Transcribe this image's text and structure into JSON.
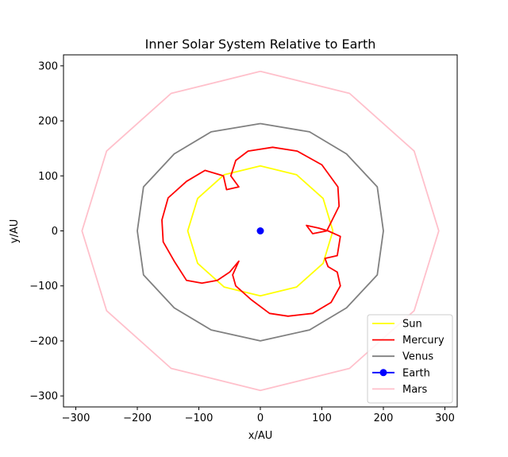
{
  "chart_data": {
    "type": "line",
    "title": "Inner Solar System Relative to Earth",
    "xlabel": "x/AU",
    "ylabel": "y/AU",
    "xlim": [
      -320,
      320
    ],
    "ylim": [
      -320,
      320
    ],
    "xticks": [
      -300,
      -200,
      -100,
      0,
      100,
      200,
      300
    ],
    "yticks": [
      -300,
      -200,
      -100,
      0,
      100,
      200,
      300
    ],
    "xticklabels": [
      "−300",
      "−200",
      "−100",
      "0",
      "100",
      "200",
      "300"
    ],
    "yticklabels": [
      "−300",
      "−200",
      "−100",
      "0",
      "100",
      "200",
      "300"
    ],
    "grid": false,
    "legend_position": "lower-right",
    "series": [
      {
        "name": "Sun",
        "color": "#ffff00",
        "description": "circle of radius about 118 around Earth",
        "points": [
          [
            118,
            0
          ],
          [
            102,
            59
          ],
          [
            59,
            102
          ],
          [
            0,
            118
          ],
          [
            -59,
            102
          ],
          [
            -102,
            59
          ],
          [
            -118,
            0
          ],
          [
            -102,
            -59
          ],
          [
            -59,
            -102
          ],
          [
            0,
            -118
          ],
          [
            59,
            -102
          ],
          [
            102,
            -59
          ],
          [
            118,
            0
          ]
        ]
      },
      {
        "name": "Mercury",
        "color": "#ff0000",
        "description": "epicycloid-like path with three inner loops",
        "points": [
          [
            108,
            0
          ],
          [
            128,
            45
          ],
          [
            126,
            80
          ],
          [
            100,
            120
          ],
          [
            60,
            145
          ],
          [
            20,
            152
          ],
          [
            -20,
            145
          ],
          [
            -40,
            128
          ],
          [
            -48,
            100
          ],
          [
            -35,
            80
          ],
          [
            -55,
            75
          ],
          [
            -60,
            100
          ],
          [
            -90,
            110
          ],
          [
            -120,
            90
          ],
          [
            -150,
            60
          ],
          [
            -160,
            20
          ],
          [
            -158,
            -20
          ],
          [
            -140,
            -55
          ],
          [
            -120,
            -90
          ],
          [
            -95,
            -95
          ],
          [
            -70,
            -90
          ],
          [
            -50,
            -75
          ],
          [
            -35,
            -55
          ],
          [
            -45,
            -80
          ],
          [
            -40,
            -100
          ],
          [
            -15,
            -125
          ],
          [
            15,
            -150
          ],
          [
            45,
            -155
          ],
          [
            85,
            -150
          ],
          [
            115,
            -130
          ],
          [
            130,
            -100
          ],
          [
            125,
            -75
          ],
          [
            110,
            -65
          ],
          [
            105,
            -50
          ],
          [
            125,
            -45
          ],
          [
            130,
            -10
          ],
          [
            110,
            0
          ],
          [
            95,
            5
          ],
          [
            75,
            10
          ],
          [
            85,
            -5
          ],
          [
            108,
            0
          ]
        ]
      },
      {
        "name": "Venus",
        "color": "#808080",
        "description": "looping path with radius between about 30 and 200",
        "points": [
          [
            0,
            195
          ],
          [
            80,
            180
          ],
          [
            140,
            140
          ],
          [
            190,
            80
          ],
          [
            200,
            0
          ],
          [
            190,
            -80
          ],
          [
            140,
            -140
          ],
          [
            80,
            -180
          ],
          [
            0,
            -200
          ],
          [
            -80,
            -180
          ],
          [
            -140,
            -140
          ],
          [
            -190,
            -80
          ],
          [
            -200,
            0
          ],
          [
            -190,
            80
          ],
          [
            -140,
            140
          ],
          [
            -80,
            180
          ],
          [
            0,
            195
          ]
        ]
      },
      {
        "name": "Earth",
        "color": "#0000ff",
        "points": [
          [
            0,
            0
          ]
        ]
      },
      {
        "name": "Mars",
        "color": "#ffc0cb",
        "description": "looping path with radius between about 20 and 290",
        "points": [
          [
            0,
            290
          ],
          [
            145,
            250
          ],
          [
            250,
            145
          ],
          [
            290,
            0
          ],
          [
            250,
            -145
          ],
          [
            145,
            -250
          ],
          [
            0,
            -290
          ],
          [
            -145,
            -250
          ],
          [
            -250,
            -145
          ],
          [
            -290,
            0
          ],
          [
            -250,
            145
          ],
          [
            -145,
            250
          ],
          [
            0,
            290
          ]
        ]
      }
    ]
  }
}
